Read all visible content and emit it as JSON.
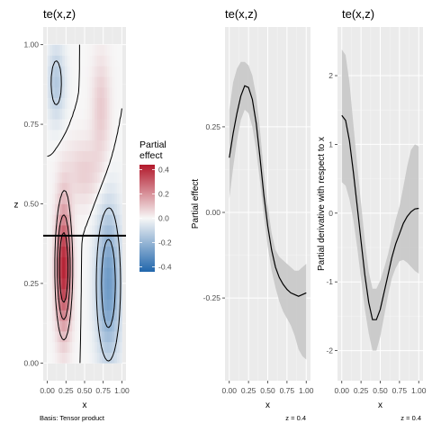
{
  "chart_data": [
    {
      "type": "heatmap",
      "title": "te(x,z)",
      "xlabel": "x",
      "ylabel": "z",
      "xlim": [
        0,
        1
      ],
      "ylim": [
        0,
        1
      ],
      "x_ticks": [
        {
          "value": 0,
          "label": "0.00"
        },
        {
          "value": 0.25,
          "label": "0.25"
        },
        {
          "value": 0.5,
          "label": "0.50"
        },
        {
          "value": 0.75,
          "label": "0.75"
        },
        {
          "value": 1,
          "label": "1.00"
        }
      ],
      "y_ticks": [
        {
          "value": 0,
          "label": "0.00"
        },
        {
          "value": 0.25,
          "label": "0.25"
        },
        {
          "value": 0.5,
          "label": "0.50"
        },
        {
          "value": 0.75,
          "label": "0.75"
        },
        {
          "value": 1,
          "label": "1.00"
        }
      ],
      "grid": true,
      "slice_line_z": 0.4,
      "caption": "Basis: Tensor product",
      "legend": {
        "title_lines": [
          "Partial",
          "effect"
        ],
        "range": [
          -0.44,
          0.44
        ],
        "ticks": [
          {
            "value": 0.4,
            "label": "0.4"
          },
          {
            "value": 0.2,
            "label": "0.2"
          },
          {
            "value": 0.0,
            "label": "0.0"
          },
          {
            "value": -0.2,
            "label": "-0.2"
          },
          {
            "value": -0.4,
            "label": "-0.4"
          }
        ],
        "colors": {
          "low": "#2166ac",
          "mid": "#f7f7f7",
          "high": "#b2182b"
        }
      },
      "colors": {
        "panel_bg": "#ebebeb",
        "grid": "#ffffff",
        "contour": "#000000"
      }
    },
    {
      "type": "line",
      "title": "te(x,z)",
      "xlabel": "x",
      "ylabel": "Partial effect",
      "xlim": [
        0,
        1
      ],
      "ylim": [
        -0.44,
        0.49
      ],
      "x_ticks": [
        {
          "value": 0,
          "label": "0.00"
        },
        {
          "value": 0.25,
          "label": "0.25"
        },
        {
          "value": 0.5,
          "label": "0.50"
        },
        {
          "value": 0.75,
          "label": "0.75"
        },
        {
          "value": 1,
          "label": "1.00"
        }
      ],
      "y_ticks": [
        {
          "value": 0.25,
          "label": "0.25"
        },
        {
          "value": 0,
          "label": "0.00"
        },
        {
          "value": -0.25,
          "label": "-0.25"
        }
      ],
      "grid": true,
      "caption": "z = 0.4",
      "x": [
        0,
        0.05,
        0.1,
        0.15,
        0.2,
        0.25,
        0.3,
        0.35,
        0.4,
        0.45,
        0.5,
        0.55,
        0.6,
        0.65,
        0.7,
        0.75,
        0.8,
        0.85,
        0.9,
        0.95,
        1.0
      ],
      "y": [
        0.16,
        0.23,
        0.29,
        0.34,
        0.37,
        0.365,
        0.33,
        0.26,
        0.16,
        0.05,
        -0.04,
        -0.11,
        -0.16,
        -0.19,
        -0.21,
        -0.225,
        -0.235,
        -0.24,
        -0.245,
        -0.24,
        -0.235
      ],
      "band_lower": [
        0.04,
        0.13,
        0.21,
        0.27,
        0.3,
        0.29,
        0.25,
        0.18,
        0.09,
        -0.01,
        -0.1,
        -0.17,
        -0.22,
        -0.26,
        -0.29,
        -0.31,
        -0.33,
        -0.36,
        -0.4,
        -0.42,
        -0.43
      ],
      "band_upper": [
        0.3,
        0.38,
        0.42,
        0.44,
        0.44,
        0.43,
        0.4,
        0.34,
        0.24,
        0.12,
        0.02,
        -0.06,
        -0.11,
        -0.13,
        -0.14,
        -0.15,
        -0.16,
        -0.17,
        -0.17,
        -0.16,
        -0.15
      ],
      "colors": {
        "panel_bg": "#ebebeb",
        "grid": "#ffffff",
        "line": "#000000",
        "band": "#c8c8c8"
      }
    },
    {
      "type": "line",
      "title": "te(x,z)",
      "xlabel": "x",
      "ylabel": "Partial derivative with respect to x",
      "xlim": [
        0,
        1
      ],
      "ylim": [
        -2.18,
        2.45
      ],
      "x_ticks": [
        {
          "value": 0,
          "label": "0.00"
        },
        {
          "value": 0.25,
          "label": "0.25"
        },
        {
          "value": 0.5,
          "label": "0.50"
        },
        {
          "value": 0.75,
          "label": "0.75"
        },
        {
          "value": 1,
          "label": "1.00"
        }
      ],
      "y_ticks": [
        {
          "value": 2,
          "label": "2"
        },
        {
          "value": 1,
          "label": "1"
        },
        {
          "value": 0,
          "label": "0"
        },
        {
          "value": -1,
          "label": "-1"
        },
        {
          "value": -2,
          "label": "-2"
        }
      ],
      "grid": true,
      "caption": "z = 0.4",
      "x": [
        0,
        0.05,
        0.1,
        0.15,
        0.2,
        0.25,
        0.3,
        0.35,
        0.4,
        0.45,
        0.5,
        0.55,
        0.6,
        0.65,
        0.7,
        0.75,
        0.8,
        0.85,
        0.9,
        0.95,
        1.0
      ],
      "y": [
        1.42,
        1.35,
        1.05,
        0.6,
        0.1,
        -0.4,
        -0.9,
        -1.3,
        -1.55,
        -1.55,
        -1.4,
        -1.15,
        -0.9,
        -0.65,
        -0.45,
        -0.3,
        -0.15,
        -0.05,
        0.02,
        0.06,
        0.07
      ],
      "band_lower": [
        0.45,
        0.4,
        0.2,
        -0.1,
        -0.5,
        -0.95,
        -1.4,
        -1.75,
        -2.0,
        -2.0,
        -1.8,
        -1.5,
        -1.2,
        -0.95,
        -0.8,
        -0.7,
        -0.68,
        -0.72,
        -0.78,
        -0.84,
        -0.88
      ],
      "band_upper": [
        2.38,
        2.3,
        1.9,
        1.3,
        0.7,
        0.15,
        -0.4,
        -0.85,
        -1.1,
        -1.1,
        -0.98,
        -0.8,
        -0.6,
        -0.35,
        -0.1,
        0.1,
        0.38,
        0.68,
        0.92,
        1.0,
        0.97
      ],
      "colors": {
        "panel_bg": "#ebebeb",
        "grid": "#ffffff",
        "line": "#000000",
        "band": "#c8c8c8"
      }
    }
  ]
}
